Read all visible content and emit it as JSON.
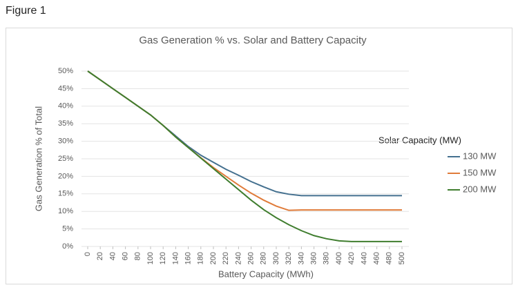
{
  "figure_label": "Figure 1",
  "chart_data": {
    "type": "line",
    "title": "Gas Generation % vs. Solar and Battery Capacity",
    "x_label": "Battery Capacity (MWh)",
    "y_label": "Gas Generation % of Total",
    "legend_title": "Solar Capacity (MW)",
    "legend": "right",
    "grid": true,
    "x": [
      0,
      20,
      40,
      60,
      80,
      100,
      120,
      140,
      160,
      180,
      200,
      220,
      240,
      260,
      280,
      300,
      320,
      340,
      360,
      380,
      400,
      420,
      440,
      460,
      480,
      500
    ],
    "xlim": [
      0,
      500
    ],
    "xticks": [
      0,
      20,
      40,
      60,
      80,
      100,
      120,
      140,
      160,
      180,
      200,
      220,
      240,
      260,
      280,
      300,
      320,
      340,
      360,
      380,
      400,
      420,
      440,
      460,
      480,
      500
    ],
    "ylim": [
      0,
      50
    ],
    "yticks": [
      {
        "value": 0,
        "label": "0%"
      },
      {
        "value": 5,
        "label": "5%"
      },
      {
        "value": 10,
        "label": "10%"
      },
      {
        "value": 15,
        "label": "15%"
      },
      {
        "value": 20,
        "label": "20%"
      },
      {
        "value": 25,
        "label": "25%"
      },
      {
        "value": 30,
        "label": "30%"
      },
      {
        "value": 35,
        "label": "35%"
      },
      {
        "value": 40,
        "label": "40%"
      },
      {
        "value": 45,
        "label": "45%"
      },
      {
        "value": 50,
        "label": "50%"
      }
    ],
    "series": [
      {
        "name": "130 MW",
        "color": "#44708f",
        "values": [
          50,
          47.5,
          45,
          42.5,
          40,
          37.5,
          34.5,
          31.5,
          28.5,
          26,
          24,
          22,
          20.3,
          18.5,
          17,
          15.6,
          14.9,
          14.5,
          14.5,
          14.5,
          14.5,
          14.5,
          14.5,
          14.5,
          14.5,
          14.5
        ]
      },
      {
        "name": "150 MW",
        "color": "#e07b39",
        "values": [
          50,
          47.5,
          45,
          42.5,
          40,
          37.5,
          34.5,
          31.2,
          28.2,
          25.3,
          22.5,
          20,
          17.5,
          15.2,
          13.2,
          11.5,
          10.3,
          10.4,
          10.4,
          10.4,
          10.4,
          10.4,
          10.4,
          10.4,
          10.4,
          10.4
        ]
      },
      {
        "name": "200 MW",
        "color": "#3f7d2e",
        "values": [
          50,
          47.5,
          45,
          42.5,
          40,
          37.5,
          34.5,
          31.2,
          28.2,
          25.2,
          22.2,
          19.2,
          16.2,
          13.2,
          10.5,
          8.2,
          6.2,
          4.5,
          3.1,
          2.2,
          1.6,
          1.4,
          1.4,
          1.4,
          1.4,
          1.4
        ]
      }
    ]
  }
}
